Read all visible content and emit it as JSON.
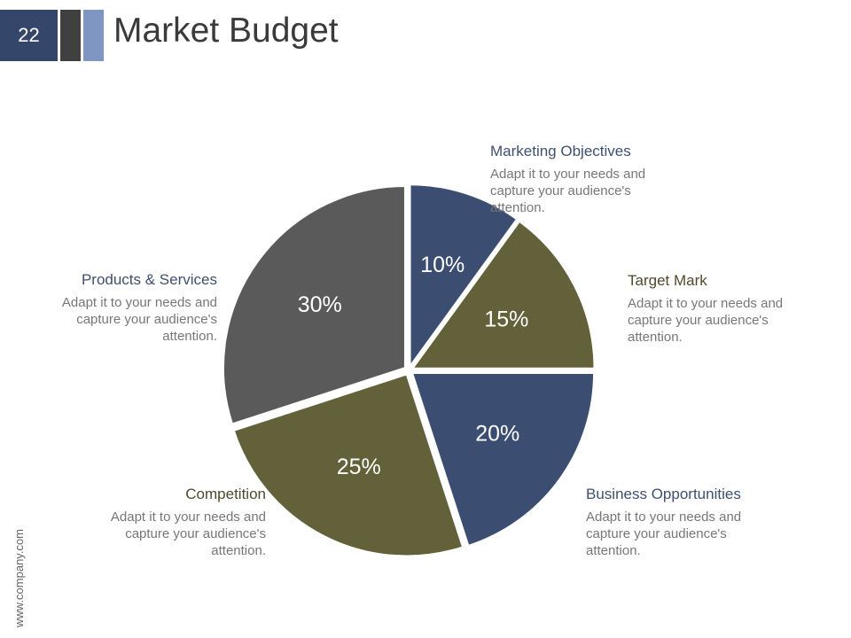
{
  "header": {
    "slide_number": "22",
    "title": "Market Budget"
  },
  "footer": {
    "url": "www.company.com"
  },
  "colors": {
    "navy": "#3b4e72",
    "olive": "#62613a",
    "gray": "#5a5a5a"
  },
  "chart_data": {
    "type": "pie",
    "title": "Market Budget",
    "slices": [
      {
        "name": "Marketing Objectives",
        "value": 10,
        "label": "10%",
        "color": "#3b4e72",
        "exploded": true
      },
      {
        "name": "Target Mark",
        "value": 15,
        "label": "15%",
        "color": "#62613a",
        "exploded": false
      },
      {
        "name": "Business Opportunities",
        "value": 20,
        "label": "20%",
        "color": "#3b4e72",
        "exploded": false
      },
      {
        "name": "Competition",
        "value": 25,
        "label": "25%",
        "color": "#62613a",
        "exploded": false
      },
      {
        "name": "Products & Services",
        "value": 30,
        "label": "30%",
        "color": "#5a5a5a",
        "exploded": false
      }
    ]
  },
  "legend": [
    {
      "title": "Marketing Objectives",
      "desc": "Adapt it to your needs and capture your audience's attention."
    },
    {
      "title": "Target Mark",
      "desc": "Adapt it to your needs and capture your audience's attention."
    },
    {
      "title": "Business Opportunities",
      "desc": "Adapt it to your needs and capture your audience's attention."
    },
    {
      "title": "Competition",
      "desc": "Adapt it to your needs and capture your audience's attention."
    },
    {
      "title": "Products & Services",
      "desc": "Adapt it to your needs and capture your audience's attention."
    }
  ]
}
